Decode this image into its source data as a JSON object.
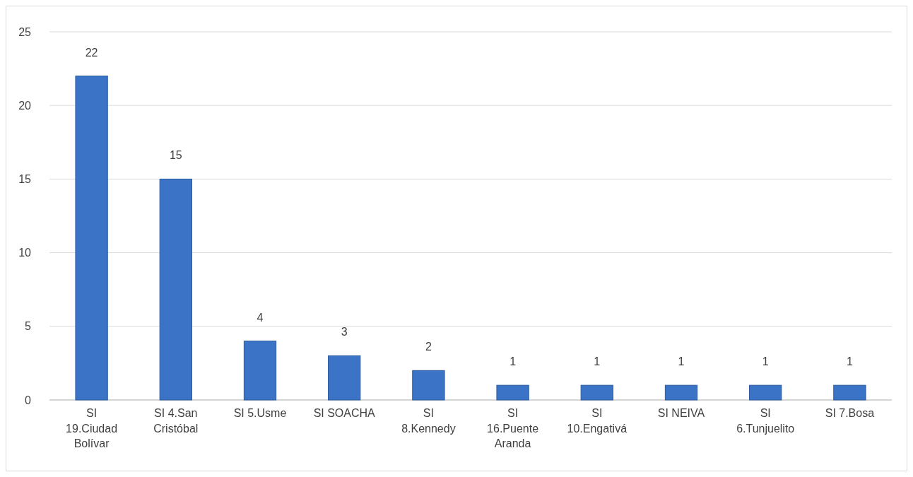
{
  "chart_data": {
    "type": "bar",
    "categories": [
      "SI 19.Ciudad Bolívar",
      "SI 4.San Cristóbal",
      "SI 5.Usme",
      "SI SOACHA",
      "SI 8.Kennedy",
      "SI 16.Puente Aranda",
      "SI 10.Engativá",
      "SI NEIVA",
      "SI 6.Tunjuelito",
      "SI 7.Bosa"
    ],
    "values": [
      22,
      15,
      4,
      3,
      2,
      1,
      1,
      1,
      1,
      1
    ],
    "color": "#3b74c6",
    "ylim": [
      0,
      25
    ],
    "yticks": [
      0,
      5,
      10,
      15,
      20,
      25
    ],
    "grid": "y",
    "data_labels": true
  }
}
